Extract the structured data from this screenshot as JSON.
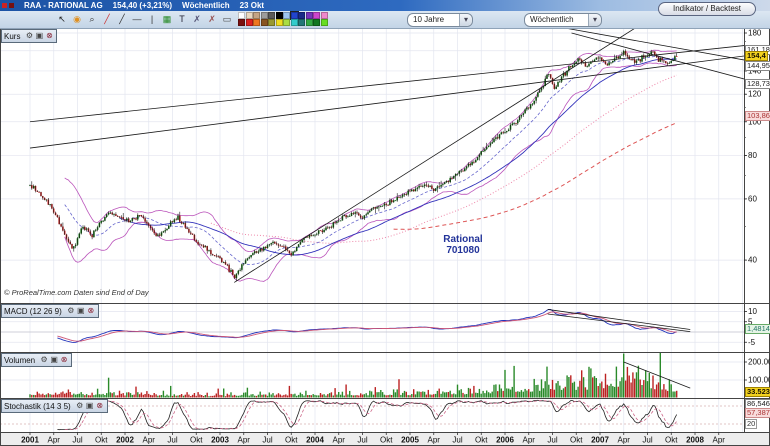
{
  "window": {
    "title_symbol": "RAA - RATIONAL AG",
    "title_price": "154,40 (+3,21%)",
    "title_period": "Wöchentlich",
    "title_date": "23 Okt"
  },
  "toolbar": {
    "timeframe_range": "10 Jahre",
    "timeframe_unit": "Wöchentlich",
    "indicator_button": "Indikator / Backtest",
    "tools": [
      {
        "name": "pointer-icon",
        "glyph": "↖",
        "color": "#222"
      },
      {
        "name": "alarm-icon",
        "glyph": "◉",
        "color": "#e09020"
      },
      {
        "name": "zoom-icon",
        "glyph": "⌕",
        "color": "#333"
      },
      {
        "name": "pencil-line-icon",
        "glyph": "╱",
        "color": "#c33"
      },
      {
        "name": "trendline-tool-icon",
        "glyph": "╱",
        "color": "#333"
      },
      {
        "name": "horizontal-line-tool-icon",
        "glyph": "—",
        "color": "#333"
      },
      {
        "name": "vertical-line-tool-icon",
        "glyph": "|",
        "color": "#333"
      },
      {
        "name": "indicator-window-icon",
        "glyph": "▦",
        "color": "#282"
      },
      {
        "name": "text-tool-icon",
        "glyph": "T",
        "color": "#223"
      },
      {
        "name": "delete-one-icon",
        "glyph": "✗",
        "color": "#557"
      },
      {
        "name": "delete-all-icon",
        "glyph": "✗",
        "color": "#955"
      },
      {
        "name": "trash-icon",
        "glyph": "▭",
        "color": "#444"
      },
      {
        "name": "settings-tools-icon",
        "glyph": "⚙",
        "color": "#444"
      }
    ],
    "palette_colors": [
      "#ffffff",
      "#ead9c0",
      "#c4a484",
      "#9c9c9c",
      "#5a5a5a",
      "#000000",
      "#9cc4ee",
      "#2244cc",
      "#1a2a88",
      "#7733bb",
      "#cc44cc",
      "#ee88cc",
      "#7a1010",
      "#dd2222",
      "#ee7722",
      "#885522",
      "#999933",
      "#eedd22",
      "#aadd44",
      "#33cccc",
      "#227777",
      "#33aa44",
      "#117722",
      "#66dd22"
    ],
    "palette_selected_index": 7
  },
  "panels": {
    "kurs": {
      "label": "Kurs",
      "credit": "© ProRealTime.com  Daten sind End of Day",
      "annotation_line1": "Rational",
      "annotation_line2": "701080",
      "price_ticks": [
        180,
        160,
        140,
        120,
        100,
        80,
        60,
        40
      ],
      "value_boxes": [
        {
          "text": "161,18",
          "value": 161.18,
          "style": "vb-white"
        },
        {
          "text": "154,4",
          "value": 154.4,
          "style": "vb-yellow"
        },
        {
          "text": "144,95",
          "value": 144.95,
          "style": "vb-white"
        },
        {
          "text": "128,73",
          "value": 128.73,
          "style": "vb-white"
        },
        {
          "text": "103,86",
          "value": 103.86,
          "style": "vb-pink"
        }
      ]
    },
    "macd": {
      "label": "MACD (12 26 9)",
      "ticks": [
        10,
        5,
        -5
      ],
      "value_boxes": [
        {
          "text": "1,4814",
          "value": 1.4814,
          "style": "vb-green"
        }
      ]
    },
    "volumen": {
      "label": "Volumen",
      "ticks": [
        {
          "v": 200000,
          "label": "200.000"
        },
        {
          "v": 100000,
          "label": "100.000"
        }
      ],
      "value_boxes": [
        {
          "text": "33.523",
          "value": 33523,
          "style": "vb-yellow"
        }
      ]
    },
    "stochastik": {
      "label": "Stochastik (14 3 5)",
      "ticks": [],
      "value_boxes": [
        {
          "text": "86,546",
          "value": 86.546,
          "style": "vb-white"
        },
        {
          "text": "57,387",
          "value": 57.387,
          "style": "vb-pink"
        },
        {
          "text": "20",
          "value": 20,
          "style": "vb-plain"
        }
      ]
    }
  },
  "time_axis": {
    "labels": [
      "2001",
      "Apr",
      "Jul",
      "Okt",
      "2002",
      "Apr",
      "Jul",
      "Okt",
      "2003",
      "Apr",
      "Jul",
      "Okt",
      "2004",
      "Apr",
      "Jul",
      "Okt",
      "2005",
      "Apr",
      "Jul",
      "Okt",
      "2006",
      "Apr",
      "Jul",
      "Okt",
      "2007",
      "Apr",
      "Jul",
      "Okt",
      "2008",
      "Apr"
    ]
  },
  "chart_data": {
    "type": "candlestick",
    "instrument": "RATIONAL AG",
    "ticker": "RAA",
    "wkn": "701080",
    "timeframe": "Wöchentlich",
    "range": "10 Jahre",
    "last_close": 154.4,
    "last_change_pct": "+3,21%",
    "last_date": "23 Okt",
    "price_axis": {
      "scale": "log",
      "ticks": [
        180,
        160,
        140,
        120,
        100,
        80,
        60,
        40
      ]
    },
    "x_axis": {
      "start": 2001.0,
      "end": 2007.81
    },
    "price_anchors": [
      [
        2001.0,
        66
      ],
      [
        2001.1,
        62
      ],
      [
        2001.2,
        58
      ],
      [
        2001.3,
        52
      ],
      [
        2001.4,
        45
      ],
      [
        2001.45,
        43
      ],
      [
        2001.55,
        50
      ],
      [
        2001.65,
        47
      ],
      [
        2001.75,
        52
      ],
      [
        2001.85,
        55
      ],
      [
        2001.95,
        53
      ],
      [
        2002.05,
        52
      ],
      [
        2002.15,
        54
      ],
      [
        2002.25,
        50
      ],
      [
        2002.35,
        47
      ],
      [
        2002.45,
        50
      ],
      [
        2002.55,
        53
      ],
      [
        2002.65,
        49
      ],
      [
        2002.75,
        45
      ],
      [
        2002.85,
        43
      ],
      [
        2002.95,
        41
      ],
      [
        2003.05,
        39
      ],
      [
        2003.15,
        36
      ],
      [
        2003.25,
        39
      ],
      [
        2003.35,
        42
      ],
      [
        2003.45,
        43
      ],
      [
        2003.55,
        45
      ],
      [
        2003.65,
        44
      ],
      [
        2003.75,
        42
      ],
      [
        2003.85,
        45
      ],
      [
        2003.95,
        47
      ],
      [
        2004.1,
        49
      ],
      [
        2004.25,
        52
      ],
      [
        2004.4,
        55
      ],
      [
        2004.5,
        53
      ],
      [
        2004.6,
        56
      ],
      [
        2004.75,
        58
      ],
      [
        2004.9,
        61
      ],
      [
        2005.0,
        63
      ],
      [
        2005.15,
        66
      ],
      [
        2005.25,
        64
      ],
      [
        2005.4,
        68
      ],
      [
        2005.55,
        72
      ],
      [
        2005.7,
        78
      ],
      [
        2005.8,
        84
      ],
      [
        2005.9,
        89
      ],
      [
        2006.0,
        94
      ],
      [
        2006.1,
        99
      ],
      [
        2006.2,
        106
      ],
      [
        2006.3,
        115
      ],
      [
        2006.4,
        128
      ],
      [
        2006.45,
        138
      ],
      [
        2006.52,
        126
      ],
      [
        2006.6,
        134
      ],
      [
        2006.7,
        145
      ],
      [
        2006.78,
        152
      ],
      [
        2006.85,
        143
      ],
      [
        2006.92,
        149
      ],
      [
        2007.0,
        153
      ],
      [
        2007.08,
        147
      ],
      [
        2007.15,
        152
      ],
      [
        2007.25,
        158
      ],
      [
        2007.35,
        149
      ],
      [
        2007.45,
        153
      ],
      [
        2007.55,
        158
      ],
      [
        2007.62,
        151
      ],
      [
        2007.7,
        146
      ],
      [
        2007.76,
        150
      ],
      [
        2007.81,
        154.4
      ]
    ],
    "volume_anchors": [
      [
        2001.0,
        35000
      ],
      [
        2001.5,
        30000
      ],
      [
        2002.0,
        28000
      ],
      [
        2003.0,
        22000
      ],
      [
        2004.0,
        26000
      ],
      [
        2005.0,
        34000
      ],
      [
        2005.8,
        50000
      ],
      [
        2006.0,
        70000
      ],
      [
        2006.5,
        85000
      ],
      [
        2007.0,
        100000
      ],
      [
        2007.4,
        130000
      ],
      [
        2007.81,
        60000
      ]
    ],
    "indicators": {
      "bollinger": "20,2",
      "sma": [
        50,
        100,
        200
      ],
      "macd": "12 26 9",
      "stochastic": "14 3 5"
    },
    "current_values": {
      "bollinger_upper": "161,18",
      "close": "154,4",
      "sma50": "144,95",
      "sma100": "128,73",
      "sma200": "103,86",
      "macd": "1,4814",
      "volume": "33.523",
      "stoch_k": "86,546",
      "stoch_d": "57,387"
    },
    "trendlines_price": [
      [
        2003.15,
        34.5,
        2007.45,
        192
      ],
      [
        2001.0,
        100,
        2008.55,
        166
      ],
      [
        2001.0,
        84,
        2008.55,
        155
      ],
      [
        2006.35,
        192,
        2008.55,
        150
      ],
      [
        2006.7,
        180,
        2008.55,
        132
      ]
    ],
    "trendlines_macd": [
      [
        2006.45,
        11,
        2007.95,
        1.2
      ],
      [
        2006.45,
        8.8,
        2007.95,
        0.2
      ]
    ],
    "trendlines_volume": [
      [
        2007.25,
        200000,
        2007.95,
        55000
      ]
    ],
    "colors": {
      "up": "#117711",
      "down": "#cc2222",
      "wick": "#1a1a1a",
      "bollinger": "#bb55bb",
      "boll_mid": "#6666cc",
      "sma50": "#3333bb",
      "sma100": "#ee88aa",
      "sma200": "#dd5555",
      "macd_line": "#2233bb",
      "signal_line": "#cc5577",
      "stoch_k": "#222222",
      "stoch_d": "#cc6688",
      "trendline": "#1a1a1a"
    }
  }
}
